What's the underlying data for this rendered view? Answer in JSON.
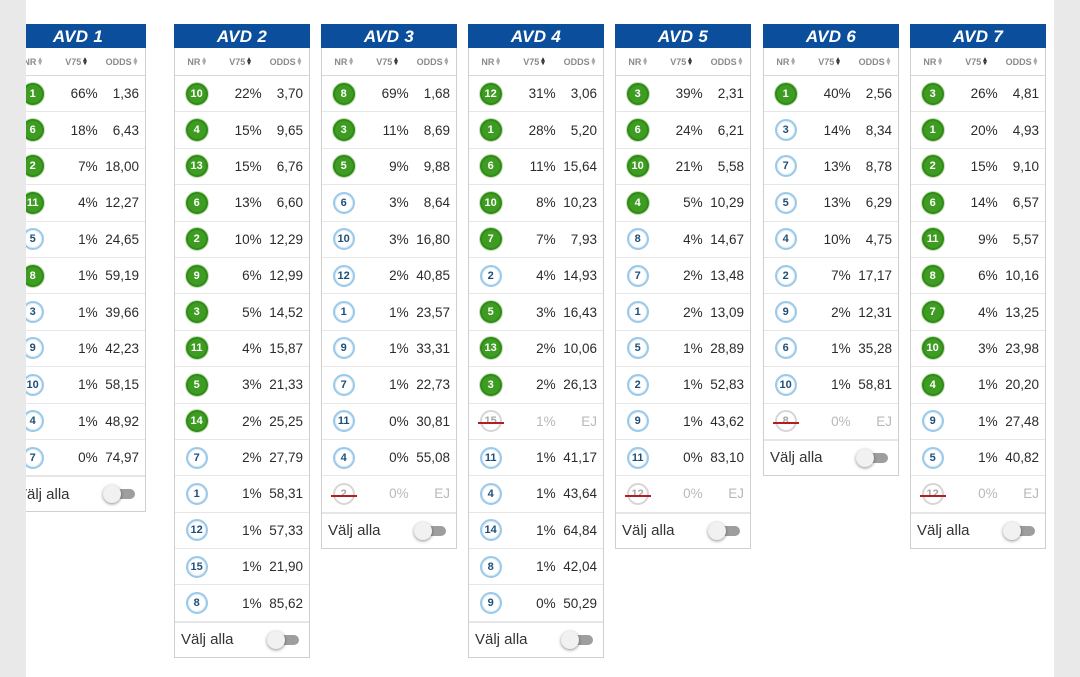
{
  "columns_header": {
    "nr": "NR",
    "pct": "V75",
    "odds": "ODDS"
  },
  "select_all_label": "Välj alla",
  "avds": [
    {
      "title": "AVD 1",
      "rows": [
        {
          "nr": "1",
          "pct": "66%",
          "odds": "1,36",
          "state": "sel"
        },
        {
          "nr": "6",
          "pct": "18%",
          "odds": "6,43",
          "state": "sel"
        },
        {
          "nr": "2",
          "pct": "7%",
          "odds": "18,00",
          "state": "sel"
        },
        {
          "nr": "11",
          "pct": "4%",
          "odds": "12,27",
          "state": "sel"
        },
        {
          "nr": "5",
          "pct": "1%",
          "odds": "24,65",
          "state": "uns"
        },
        {
          "nr": "8",
          "pct": "1%",
          "odds": "59,19",
          "state": "sel"
        },
        {
          "nr": "3",
          "pct": "1%",
          "odds": "39,66",
          "state": "uns"
        },
        {
          "nr": "9",
          "pct": "1%",
          "odds": "42,23",
          "state": "uns"
        },
        {
          "nr": "10",
          "pct": "1%",
          "odds": "58,15",
          "state": "uns"
        },
        {
          "nr": "4",
          "pct": "1%",
          "odds": "48,92",
          "state": "uns"
        },
        {
          "nr": "7",
          "pct": "0%",
          "odds": "74,97",
          "state": "uns"
        }
      ]
    },
    {
      "title": "AVD 2",
      "rows": [
        {
          "nr": "10",
          "pct": "22%",
          "odds": "3,70",
          "state": "sel"
        },
        {
          "nr": "4",
          "pct": "15%",
          "odds": "9,65",
          "state": "sel"
        },
        {
          "nr": "13",
          "pct": "15%",
          "odds": "6,76",
          "state": "sel"
        },
        {
          "nr": "6",
          "pct": "13%",
          "odds": "6,60",
          "state": "sel"
        },
        {
          "nr": "2",
          "pct": "10%",
          "odds": "12,29",
          "state": "sel"
        },
        {
          "nr": "9",
          "pct": "6%",
          "odds": "12,99",
          "state": "sel"
        },
        {
          "nr": "3",
          "pct": "5%",
          "odds": "14,52",
          "state": "sel"
        },
        {
          "nr": "11",
          "pct": "4%",
          "odds": "15,87",
          "state": "sel"
        },
        {
          "nr": "5",
          "pct": "3%",
          "odds": "21,33",
          "state": "sel"
        },
        {
          "nr": "14",
          "pct": "2%",
          "odds": "25,25",
          "state": "sel"
        },
        {
          "nr": "7",
          "pct": "2%",
          "odds": "27,79",
          "state": "uns"
        },
        {
          "nr": "1",
          "pct": "1%",
          "odds": "58,31",
          "state": "uns"
        },
        {
          "nr": "12",
          "pct": "1%",
          "odds": "57,33",
          "state": "uns"
        },
        {
          "nr": "15",
          "pct": "1%",
          "odds": "21,90",
          "state": "uns"
        },
        {
          "nr": "8",
          "pct": "1%",
          "odds": "85,62",
          "state": "uns"
        }
      ]
    },
    {
      "title": "AVD 3",
      "rows": [
        {
          "nr": "8",
          "pct": "69%",
          "odds": "1,68",
          "state": "sel"
        },
        {
          "nr": "3",
          "pct": "11%",
          "odds": "8,69",
          "state": "sel"
        },
        {
          "nr": "5",
          "pct": "9%",
          "odds": "9,88",
          "state": "sel"
        },
        {
          "nr": "6",
          "pct": "3%",
          "odds": "8,64",
          "state": "uns"
        },
        {
          "nr": "10",
          "pct": "3%",
          "odds": "16,80",
          "state": "uns"
        },
        {
          "nr": "12",
          "pct": "2%",
          "odds": "40,85",
          "state": "uns"
        },
        {
          "nr": "1",
          "pct": "1%",
          "odds": "23,57",
          "state": "uns"
        },
        {
          "nr": "9",
          "pct": "1%",
          "odds": "33,31",
          "state": "uns"
        },
        {
          "nr": "7",
          "pct": "1%",
          "odds": "22,73",
          "state": "uns"
        },
        {
          "nr": "11",
          "pct": "0%",
          "odds": "30,81",
          "state": "uns"
        },
        {
          "nr": "4",
          "pct": "0%",
          "odds": "55,08",
          "state": "uns"
        },
        {
          "nr": "2",
          "pct": "0%",
          "odds": "EJ",
          "state": "scr"
        }
      ]
    },
    {
      "title": "AVD 4",
      "rows": [
        {
          "nr": "12",
          "pct": "31%",
          "odds": "3,06",
          "state": "sel"
        },
        {
          "nr": "1",
          "pct": "28%",
          "odds": "5,20",
          "state": "sel"
        },
        {
          "nr": "6",
          "pct": "11%",
          "odds": "15,64",
          "state": "sel"
        },
        {
          "nr": "10",
          "pct": "8%",
          "odds": "10,23",
          "state": "sel"
        },
        {
          "nr": "7",
          "pct": "7%",
          "odds": "7,93",
          "state": "sel"
        },
        {
          "nr": "2",
          "pct": "4%",
          "odds": "14,93",
          "state": "uns"
        },
        {
          "nr": "5",
          "pct": "3%",
          "odds": "16,43",
          "state": "sel"
        },
        {
          "nr": "13",
          "pct": "2%",
          "odds": "10,06",
          "state": "sel"
        },
        {
          "nr": "3",
          "pct": "2%",
          "odds": "26,13",
          "state": "sel"
        },
        {
          "nr": "15",
          "pct": "1%",
          "odds": "EJ",
          "state": "scr"
        },
        {
          "nr": "11",
          "pct": "1%",
          "odds": "41,17",
          "state": "uns"
        },
        {
          "nr": "4",
          "pct": "1%",
          "odds": "43,64",
          "state": "uns"
        },
        {
          "nr": "14",
          "pct": "1%",
          "odds": "64,84",
          "state": "uns"
        },
        {
          "nr": "8",
          "pct": "1%",
          "odds": "42,04",
          "state": "uns"
        },
        {
          "nr": "9",
          "pct": "0%",
          "odds": "50,29",
          "state": "uns"
        }
      ]
    },
    {
      "title": "AVD 5",
      "rows": [
        {
          "nr": "3",
          "pct": "39%",
          "odds": "2,31",
          "state": "sel"
        },
        {
          "nr": "6",
          "pct": "24%",
          "odds": "6,21",
          "state": "sel"
        },
        {
          "nr": "10",
          "pct": "21%",
          "odds": "5,58",
          "state": "sel"
        },
        {
          "nr": "4",
          "pct": "5%",
          "odds": "10,29",
          "state": "sel"
        },
        {
          "nr": "8",
          "pct": "4%",
          "odds": "14,67",
          "state": "uns"
        },
        {
          "nr": "7",
          "pct": "2%",
          "odds": "13,48",
          "state": "uns"
        },
        {
          "nr": "1",
          "pct": "2%",
          "odds": "13,09",
          "state": "uns"
        },
        {
          "nr": "5",
          "pct": "1%",
          "odds": "28,89",
          "state": "uns"
        },
        {
          "nr": "2",
          "pct": "1%",
          "odds": "52,83",
          "state": "uns"
        },
        {
          "nr": "9",
          "pct": "1%",
          "odds": "43,62",
          "state": "uns"
        },
        {
          "nr": "11",
          "pct": "0%",
          "odds": "83,10",
          "state": "uns"
        },
        {
          "nr": "12",
          "pct": "0%",
          "odds": "EJ",
          "state": "scr"
        }
      ]
    },
    {
      "title": "AVD 6",
      "rows": [
        {
          "nr": "1",
          "pct": "40%",
          "odds": "2,56",
          "state": "sel"
        },
        {
          "nr": "3",
          "pct": "14%",
          "odds": "8,34",
          "state": "uns"
        },
        {
          "nr": "7",
          "pct": "13%",
          "odds": "8,78",
          "state": "uns"
        },
        {
          "nr": "5",
          "pct": "13%",
          "odds": "6,29",
          "state": "uns"
        },
        {
          "nr": "4",
          "pct": "10%",
          "odds": "4,75",
          "state": "uns"
        },
        {
          "nr": "2",
          "pct": "7%",
          "odds": "17,17",
          "state": "uns"
        },
        {
          "nr": "9",
          "pct": "2%",
          "odds": "12,31",
          "state": "uns"
        },
        {
          "nr": "6",
          "pct": "1%",
          "odds": "35,28",
          "state": "uns"
        },
        {
          "nr": "10",
          "pct": "1%",
          "odds": "58,81",
          "state": "uns"
        },
        {
          "nr": "8",
          "pct": "0%",
          "odds": "EJ",
          "state": "scr"
        }
      ]
    },
    {
      "title": "AVD 7",
      "rows": [
        {
          "nr": "3",
          "pct": "26%",
          "odds": "4,81",
          "state": "sel"
        },
        {
          "nr": "1",
          "pct": "20%",
          "odds": "4,93",
          "state": "sel"
        },
        {
          "nr": "2",
          "pct": "15%",
          "odds": "9,10",
          "state": "sel"
        },
        {
          "nr": "6",
          "pct": "14%",
          "odds": "6,57",
          "state": "sel"
        },
        {
          "nr": "11",
          "pct": "9%",
          "odds": "5,57",
          "state": "sel"
        },
        {
          "nr": "8",
          "pct": "6%",
          "odds": "10,16",
          "state": "sel"
        },
        {
          "nr": "7",
          "pct": "4%",
          "odds": "13,25",
          "state": "sel"
        },
        {
          "nr": "10",
          "pct": "3%",
          "odds": "23,98",
          "state": "sel"
        },
        {
          "nr": "4",
          "pct": "1%",
          "odds": "20,20",
          "state": "sel"
        },
        {
          "nr": "9",
          "pct": "1%",
          "odds": "27,48",
          "state": "uns"
        },
        {
          "nr": "5",
          "pct": "1%",
          "odds": "40,82",
          "state": "uns"
        },
        {
          "nr": "12",
          "pct": "0%",
          "odds": "EJ",
          "state": "scr"
        }
      ]
    }
  ]
}
